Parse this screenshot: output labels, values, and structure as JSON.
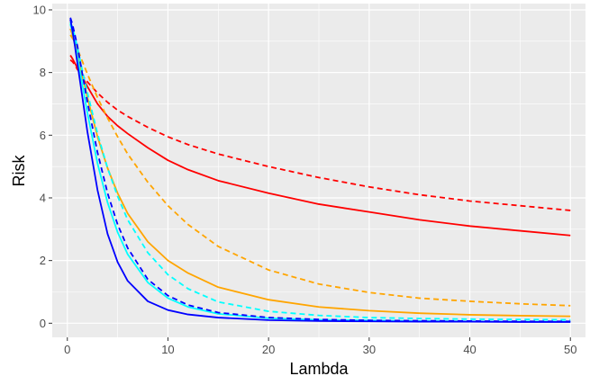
{
  "chart_data": {
    "type": "line",
    "title": "",
    "xlabel": "Lambda",
    "ylabel": "Risk",
    "xlim": [
      -1.5,
      51.5
    ],
    "ylim": [
      -0.45,
      10.2
    ],
    "x_ticks": [
      0,
      10,
      20,
      30,
      40,
      50
    ],
    "y_ticks": [
      0,
      2,
      4,
      6,
      8,
      10
    ],
    "grid": true,
    "legend": "none",
    "x": [
      0.3,
      0.5,
      0.75,
      1,
      1.5,
      2,
      3,
      4,
      5,
      6,
      8,
      10,
      12,
      15,
      20,
      25,
      30,
      35,
      40,
      45,
      50
    ],
    "series": [
      {
        "color": "#FF0000",
        "dash": "solid",
        "values": [
          8.55,
          8.45,
          8.3,
          8.15,
          7.85,
          7.55,
          7.0,
          6.6,
          6.3,
          6.05,
          5.6,
          5.2,
          4.9,
          4.55,
          4.15,
          3.8,
          3.55,
          3.3,
          3.1,
          2.95,
          2.8
        ]
      },
      {
        "color": "#FF0000",
        "dash": "dashed",
        "values": [
          8.4,
          8.35,
          8.25,
          8.1,
          7.9,
          7.7,
          7.35,
          7.05,
          6.8,
          6.6,
          6.25,
          5.95,
          5.7,
          5.4,
          5.0,
          4.65,
          4.35,
          4.1,
          3.9,
          3.75,
          3.6
        ]
      },
      {
        "color": "#FFA500",
        "dash": "solid",
        "values": [
          9.4,
          9.2,
          8.9,
          8.6,
          7.9,
          7.2,
          5.95,
          4.95,
          4.15,
          3.5,
          2.6,
          2.0,
          1.6,
          1.15,
          0.75,
          0.52,
          0.4,
          0.32,
          0.27,
          0.24,
          0.22
        ]
      },
      {
        "color": "#FFA500",
        "dash": "dashed",
        "values": [
          9.2,
          9.1,
          8.95,
          8.75,
          8.35,
          7.95,
          7.2,
          6.55,
          5.95,
          5.4,
          4.5,
          3.75,
          3.15,
          2.45,
          1.7,
          1.25,
          0.98,
          0.8,
          0.7,
          0.62,
          0.56
        ]
      },
      {
        "color": "#00FFFF",
        "dash": "solid",
        "values": [
          9.55,
          9.3,
          8.9,
          8.5,
          7.6,
          6.7,
          5.1,
          3.85,
          2.9,
          2.2,
          1.3,
          0.8,
          0.52,
          0.3,
          0.16,
          0.11,
          0.09,
          0.07,
          0.06,
          0.05,
          0.05
        ]
      },
      {
        "color": "#00FFFF",
        "dash": "dashed",
        "values": [
          9.6,
          9.45,
          9.15,
          8.8,
          8.05,
          7.35,
          6.05,
          4.95,
          4.05,
          3.3,
          2.25,
          1.55,
          1.1,
          0.68,
          0.38,
          0.25,
          0.18,
          0.15,
          0.13,
          0.12,
          0.11
        ]
      },
      {
        "color": "#0000FF",
        "dash": "solid",
        "values": [
          9.7,
          9.35,
          8.85,
          8.3,
          7.2,
          6.1,
          4.25,
          2.85,
          1.95,
          1.35,
          0.7,
          0.42,
          0.28,
          0.18,
          0.1,
          0.07,
          0.06,
          0.05,
          0.05,
          0.04,
          0.04
        ]
      },
      {
        "color": "#0000FF",
        "dash": "dashed",
        "values": [
          9.75,
          9.55,
          9.2,
          8.85,
          7.95,
          7.05,
          5.45,
          4.15,
          3.15,
          2.4,
          1.4,
          0.88,
          0.58,
          0.34,
          0.18,
          0.12,
          0.09,
          0.08,
          0.07,
          0.06,
          0.06
        ]
      }
    ]
  }
}
